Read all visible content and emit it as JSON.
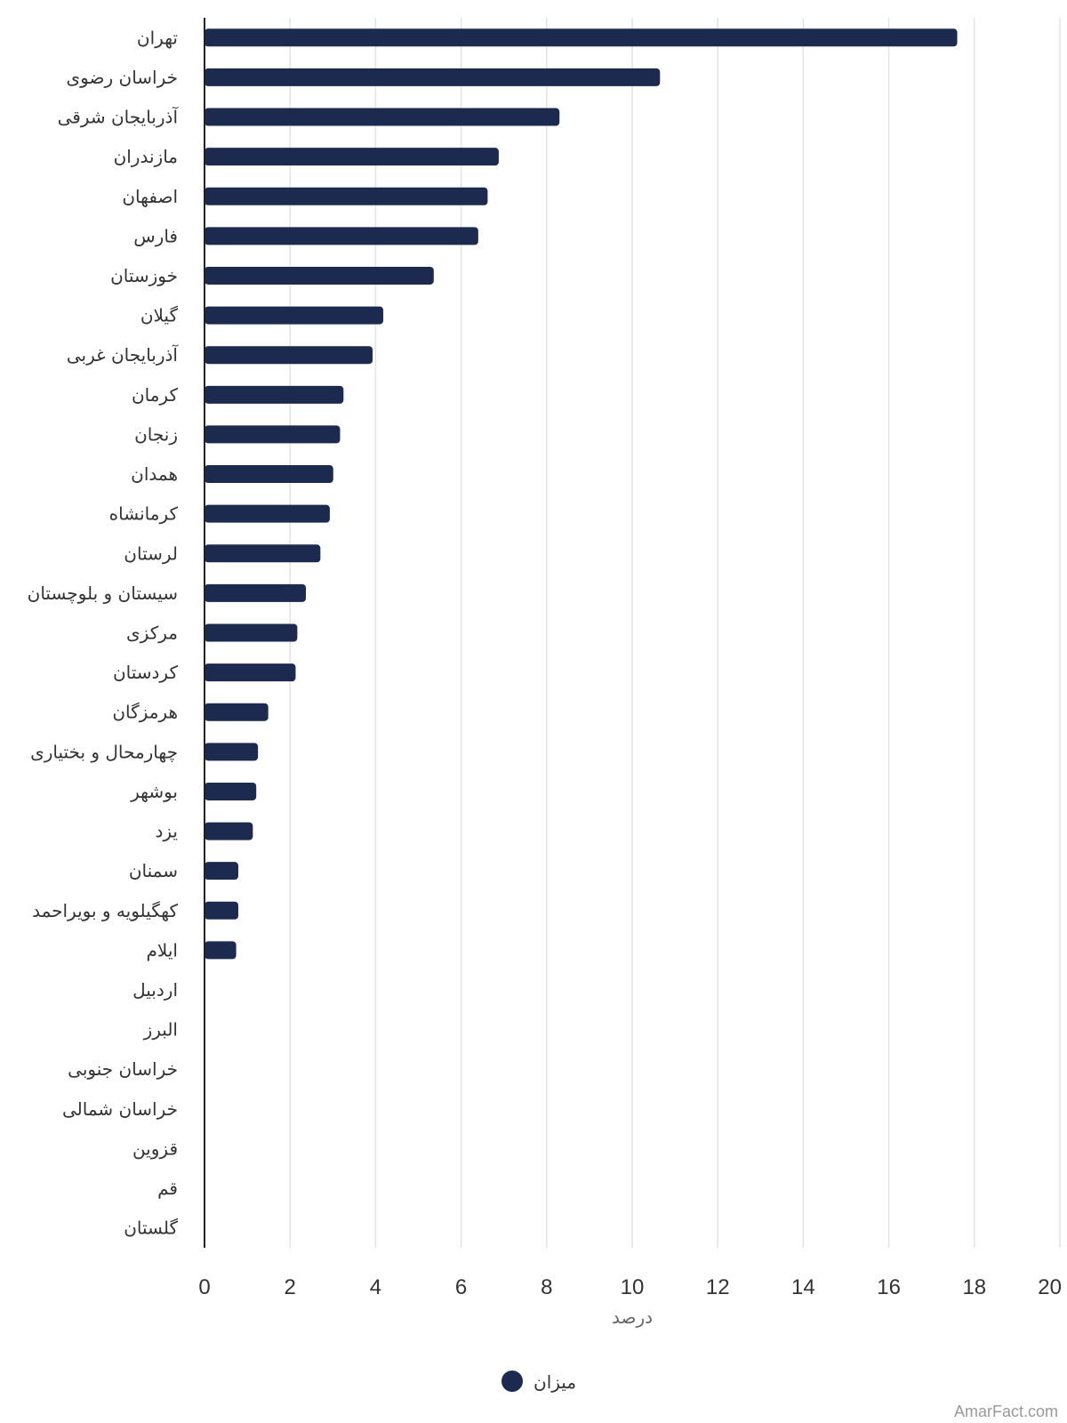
{
  "chart_data": {
    "type": "bar",
    "orientation": "horizontal",
    "categories": [
      "تهران",
      "خراسان رضوی",
      "آذربایجان شرقی",
      "مازندران",
      "اصفهان",
      "فارس",
      "خوزستان",
      "گیلان",
      "آذربایجان غربی",
      "کرمان",
      "زنجان",
      "همدان",
      "کرمانشاه",
      "لرستان",
      "سیستان و بلوچستان",
      "مرکزی",
      "کردستان",
      "هرمزگان",
      "چهارمحال و بختیاری",
      "بوشهر",
      "یزد",
      "سمنان",
      "کهگیلویه و بویراحمد",
      "ایلام",
      "اردبیل",
      "البرز",
      "خراسان جنوبی",
      "خراسان شمالی",
      "قزوین",
      "قم",
      "گلستان"
    ],
    "series": [
      {
        "name": "میزان",
        "color": "#1b2a4e",
        "values": [
          17.6,
          10.65,
          8.3,
          6.88,
          6.62,
          6.4,
          5.36,
          4.18,
          3.93,
          3.25,
          3.17,
          3.01,
          2.93,
          2.71,
          2.37,
          2.17,
          2.13,
          1.49,
          1.25,
          1.21,
          1.13,
          0.79,
          0.79,
          0.74,
          0,
          0,
          0,
          0,
          0,
          0,
          0
        ]
      }
    ],
    "xlim": [
      0,
      20
    ],
    "xticks": [
      "0",
      "2",
      "4",
      "6",
      "8",
      "10",
      "12",
      "14",
      "16",
      "18",
      "20"
    ],
    "xlabel": "درصد",
    "grid": true,
    "legend_position": "bottom-center"
  },
  "credit": "AmarFact.com"
}
